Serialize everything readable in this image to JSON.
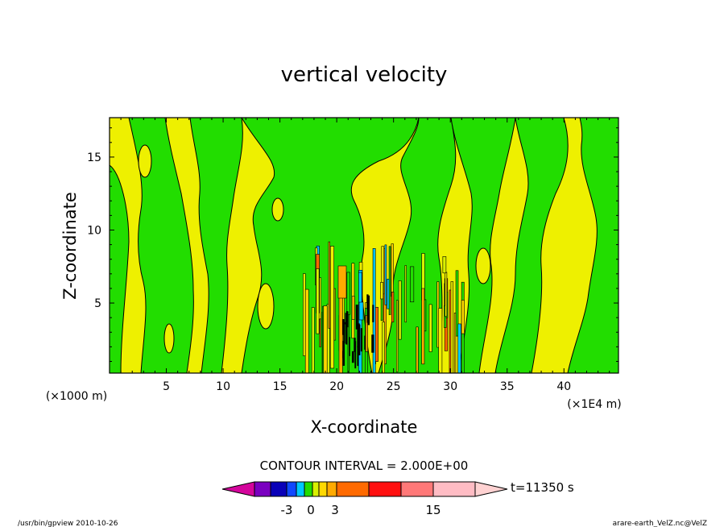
{
  "chart_data": {
    "type": "heatmap",
    "title": "vertical velocity",
    "xlabel": "X-coordinate",
    "ylabel": "Z-coordinate",
    "x_unit_left": "(×1000 m)",
    "x_unit_right": "(×1E4 m)",
    "xlim": [
      0,
      44.8
    ],
    "ylim": [
      0.2,
      17.7
    ],
    "x_ticks": [
      "5",
      "10",
      "15",
      "20",
      "25",
      "30",
      "35",
      "40"
    ],
    "y_ticks": [
      "5",
      "10",
      "15"
    ],
    "contour_interval_text": "CONTOUR INTERVAL = 2.000E+00",
    "colorbar": {
      "tick_labels": [
        "-3",
        "0",
        "3",
        "15"
      ],
      "colors": [
        "#d4059c",
        "#7a00c0",
        "#0a00b8",
        "#1048ff",
        "#00c8ff",
        "#22dd00",
        "#d8f000",
        "#ffd800",
        "#ffaa00",
        "#ff6a00",
        "#ff1010",
        "#ff7878",
        "#ffbcc4",
        "#ffd2d2"
      ],
      "levels": [
        -8,
        -6,
        -4,
        -3,
        -2,
        -1,
        0,
        1,
        2,
        3,
        7,
        11,
        15,
        19
      ]
    },
    "time_label": "t=11350 s",
    "grid": false
  },
  "footer": {
    "left": "/usr/bin/gpview   2010-10-26",
    "right": "arare-earth_VelZ.nc@VelZ"
  }
}
